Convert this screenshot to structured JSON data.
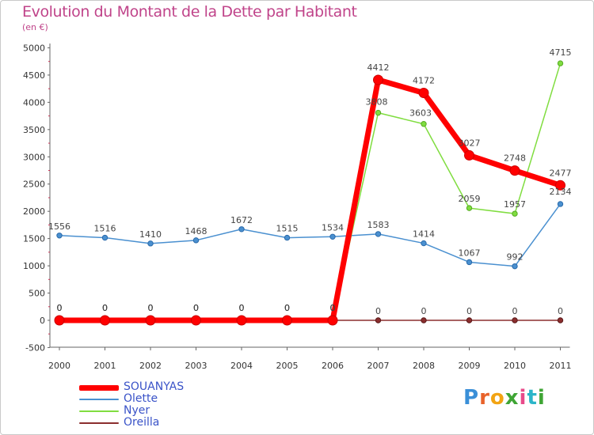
{
  "title": "Evolution du Montant de la Dette par Habitant",
  "subtitle": "(en €)",
  "logo_text": "Proxiti",
  "chart_data": {
    "type": "line",
    "title": "Evolution du Montant de la Dette par Habitant",
    "subtitle": "(en €)",
    "categories": [
      "2000",
      "2001",
      "2002",
      "2003",
      "2004",
      "2005",
      "2006",
      "2007",
      "2008",
      "2009",
      "2010",
      "2011"
    ],
    "ylim": [
      -500,
      5000
    ],
    "yticks": [
      -500,
      0,
      500,
      1000,
      1500,
      2000,
      2500,
      3000,
      3500,
      4000,
      4500,
      5000
    ],
    "grid": false,
    "legend_position": "bottom-left",
    "series": [
      {
        "name": "SOUANYAS",
        "color": "#ff0000",
        "values": [
          0,
          0,
          0,
          0,
          0,
          0,
          0,
          4412,
          4172,
          3027,
          2748,
          2477
        ]
      },
      {
        "name": "Olette",
        "color": "#4a90d0",
        "values": [
          1556,
          1516,
          1410,
          1468,
          1672,
          1515,
          1534,
          1583,
          1414,
          1067,
          992,
          2134
        ]
      },
      {
        "name": "Nyer",
        "color": "#80dd40",
        "values": [
          0,
          0,
          0,
          0,
          0,
          0,
          0,
          3808,
          3603,
          2059,
          1957,
          4715
        ]
      },
      {
        "name": "Oreilla",
        "color": "#8b2e2e",
        "values": [
          0,
          0,
          0,
          0,
          0,
          0,
          0,
          0,
          0,
          0,
          0,
          0
        ]
      }
    ]
  }
}
